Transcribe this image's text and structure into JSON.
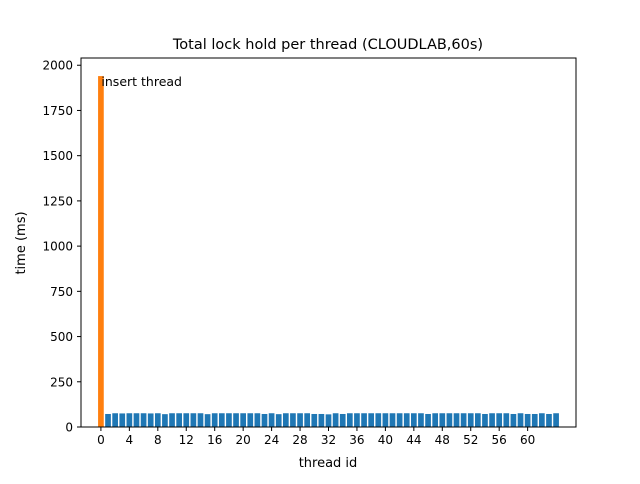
{
  "chart_data": {
    "type": "bar",
    "title": "Total lock hold per thread (CLOUDLAB,60s)",
    "xlabel": "thread id",
    "ylabel": "time (ms)",
    "xlim": [
      -2.8,
      66.8
    ],
    "ylim": [
      0,
      2040
    ],
    "xticks": [
      0,
      4,
      8,
      12,
      16,
      20,
      24,
      28,
      32,
      36,
      40,
      44,
      48,
      52,
      56,
      60
    ],
    "yticks": [
      0,
      250,
      500,
      750,
      1000,
      1250,
      1500,
      1750,
      2000
    ],
    "colors": {
      "insert": "#ff7f0e",
      "worker": "#1f77b4"
    },
    "grid": false,
    "series": [
      {
        "x": [
          0
        ],
        "values": [
          1940
        ],
        "color": "#ff7f0e",
        "annotation": "insert thread"
      },
      {
        "x": [
          1,
          2,
          3,
          4,
          5,
          6,
          7,
          8,
          9,
          10,
          11,
          12,
          13,
          14,
          15,
          16,
          17,
          18,
          19,
          20,
          21,
          22,
          23,
          24,
          25,
          26,
          27,
          28,
          29,
          30,
          31,
          32,
          33,
          34,
          35,
          36,
          37,
          38,
          39,
          40,
          41,
          42,
          43,
          44,
          45,
          46,
          47,
          48,
          49,
          50,
          51,
          52,
          53,
          54,
          55,
          56,
          57,
          58,
          59,
          60,
          61,
          62,
          63,
          64
        ],
        "values": [
          72,
          76,
          75,
          76,
          76,
          76,
          75,
          76,
          71,
          76,
          76,
          76,
          76,
          76,
          71,
          76,
          76,
          76,
          76,
          76,
          76,
          76,
          72,
          76,
          71,
          76,
          76,
          76,
          76,
          72,
          72,
          70,
          76,
          72,
          76,
          76,
          76,
          76,
          76,
          76,
          76,
          76,
          76,
          76,
          76,
          72,
          76,
          76,
          76,
          76,
          76,
          76,
          76,
          72,
          76,
          76,
          76,
          72,
          76,
          72,
          72,
          76,
          72,
          76
        ],
        "color": "#1f77b4"
      }
    ]
  }
}
